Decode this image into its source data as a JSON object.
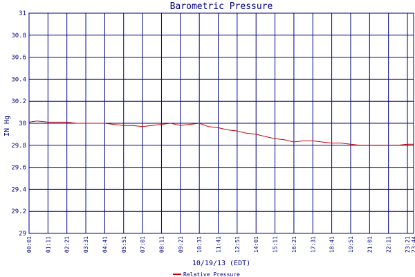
{
  "chart_data": {
    "type": "line",
    "title": "Barometric Pressure",
    "xlabel": "10/19/13 (EDT)",
    "ylabel": "IN Hg",
    "ylim": [
      29,
      31
    ],
    "y_ticks": [
      "29",
      "29.2",
      "29.4",
      "29.6",
      "29.8",
      "30",
      "30.2",
      "30.4",
      "30.6",
      "30.8",
      "31"
    ],
    "x_ticks": [
      "00:01",
      "01:11",
      "02:21",
      "03:31",
      "04:41",
      "05:51",
      "07:01",
      "08:11",
      "09:21",
      "10:31",
      "11:41",
      "12:51",
      "14:01",
      "15:11",
      "16:21",
      "17:31",
      "18:41",
      "19:51",
      "21:01",
      "22:11",
      "23:21",
      "23:44"
    ],
    "grid": true,
    "legend_position": "bottom-center",
    "colors": {
      "axis": "#000080",
      "grid": "#000080",
      "series": "#cc0000",
      "text": "#000080"
    },
    "series": [
      {
        "name": "Relative Pressure",
        "x": [
          "00:01",
          "00:30",
          "01:11",
          "01:45",
          "02:21",
          "02:55",
          "03:31",
          "04:05",
          "04:41",
          "05:15",
          "05:51",
          "06:25",
          "07:01",
          "07:35",
          "08:11",
          "08:45",
          "09:21",
          "09:55",
          "10:31",
          "11:05",
          "11:41",
          "12:15",
          "12:51",
          "13:25",
          "14:01",
          "14:35",
          "15:11",
          "15:45",
          "16:21",
          "16:55",
          "17:31",
          "18:05",
          "18:41",
          "19:15",
          "19:51",
          "20:25",
          "21:01",
          "21:35",
          "22:11",
          "22:45",
          "23:21",
          "23:44"
        ],
        "values": [
          30.01,
          30.02,
          30.01,
          30.01,
          30.01,
          30.0,
          30.0,
          30.0,
          30.0,
          29.99,
          29.98,
          29.98,
          29.97,
          29.98,
          29.99,
          30.0,
          29.98,
          29.99,
          30.0,
          29.97,
          29.96,
          29.94,
          29.93,
          29.91,
          29.9,
          29.88,
          29.86,
          29.85,
          29.83,
          29.84,
          29.84,
          29.83,
          29.82,
          29.82,
          29.81,
          29.8,
          29.8,
          29.8,
          29.8,
          29.8,
          29.81,
          29.81
        ]
      }
    ]
  }
}
